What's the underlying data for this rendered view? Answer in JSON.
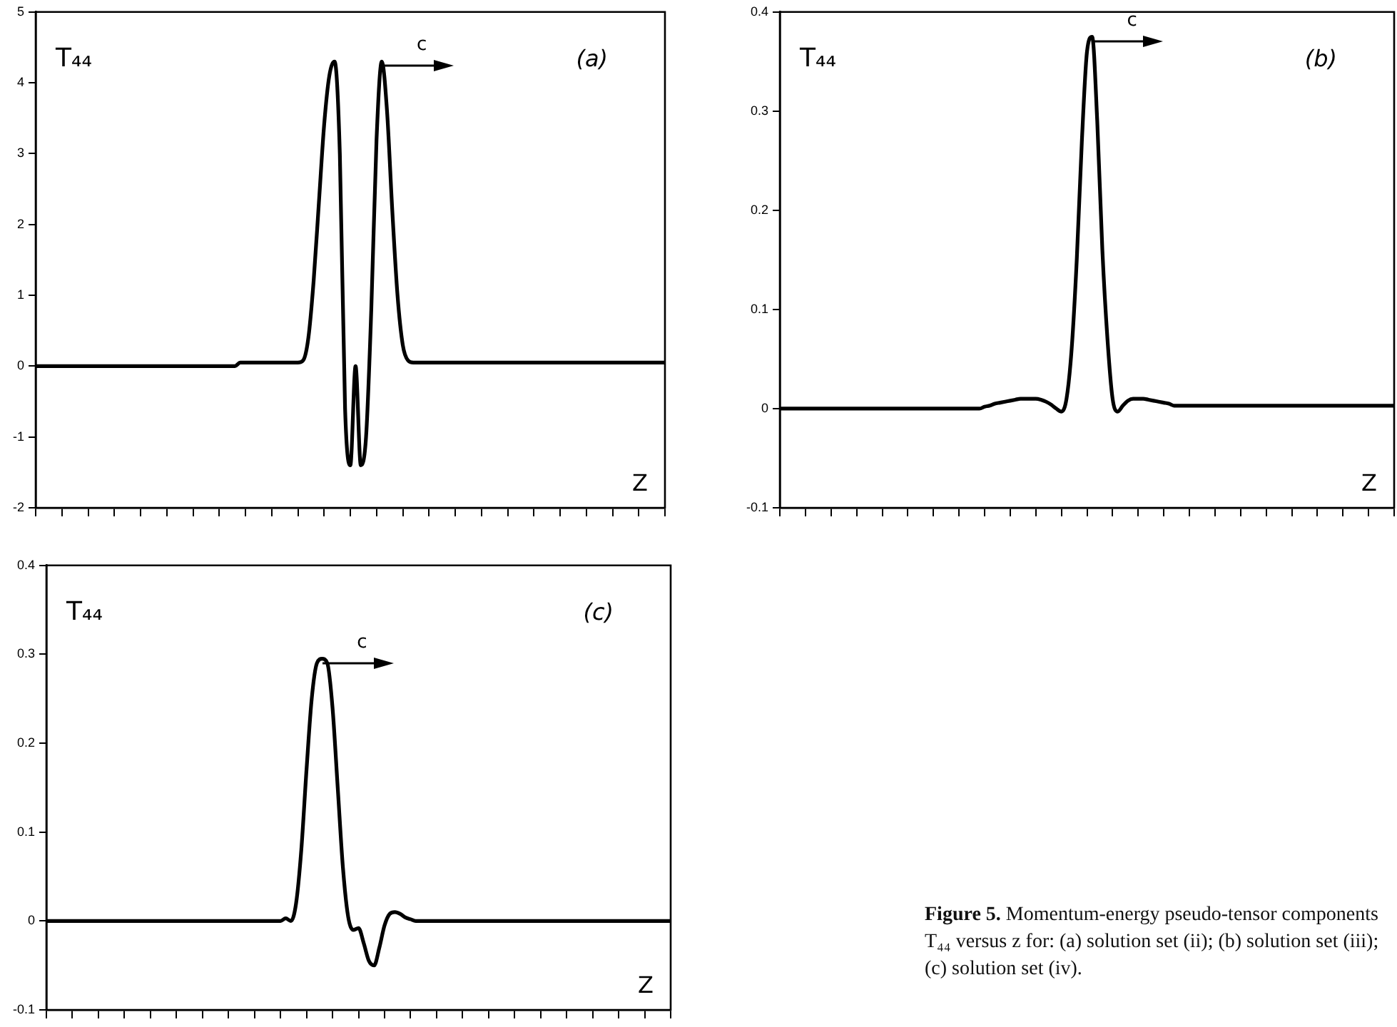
{
  "chart_data": [
    {
      "type": "line",
      "xlabel": "Z",
      "ylabel": "T₄₄",
      "annotations": [
        "(a)",
        "c"
      ],
      "grid": false,
      "legend": false,
      "tick_labels": "y",
      "ylim": [
        -2,
        5
      ],
      "yticks": [
        -2,
        -1,
        0,
        1,
        2,
        3,
        4,
        5
      ],
      "categories": [
        null,
        null,
        null,
        null,
        null,
        null,
        null,
        null,
        null,
        null,
        null,
        null,
        null,
        null,
        null,
        null,
        null,
        null,
        null,
        null,
        null,
        null,
        null,
        null,
        null,
        null,
        null,
        null,
        null,
        null,
        null,
        null,
        null,
        null,
        null,
        null,
        null,
        null,
        null,
        null,
        null,
        null,
        null,
        null,
        null,
        null,
        null,
        null,
        null,
        null,
        null,
        null,
        null,
        null,
        null,
        null,
        null,
        null,
        null,
        null,
        null,
        null,
        null,
        null,
        null,
        null,
        null,
        null,
        null,
        null,
        null,
        null,
        null,
        null,
        null,
        null,
        null,
        null,
        null,
        null,
        null,
        null,
        null,
        null,
        null,
        null,
        null,
        null,
        null,
        null,
        null,
        null,
        null,
        null,
        null,
        null,
        null,
        null,
        null,
        null,
        null,
        null,
        null,
        null,
        null,
        null,
        null,
        null,
        null,
        null,
        null,
        null,
        null,
        null,
        null,
        null,
        null,
        null,
        null,
        null,
        null
      ],
      "series": [
        {
          "color": "#000000",
          "values": [
            0,
            0,
            0,
            0,
            0,
            0,
            0,
            0,
            0,
            0,
            0,
            0,
            0,
            0,
            0,
            0,
            0,
            0,
            0,
            0,
            0,
            0,
            0,
            0,
            0,
            0,
            0,
            0,
            0,
            0,
            0,
            0,
            0,
            0,
            0,
            0,
            0,
            0,
            0,
            0.05,
            0.05,
            0.05,
            0.05,
            0.05,
            0.05,
            0.05,
            0.05,
            0.05,
            0.05,
            0.05,
            0.05,
            0.08,
            0.4,
            1.2,
            2.3,
            3.4,
            4.1,
            4.3,
            3.0,
            -0.6,
            -1.4,
            0,
            -1.4,
            -1.0,
            0.8,
            3.2,
            4.3,
            3.6,
            2.2,
            1.0,
            0.3,
            0.08,
            0.05,
            0.05,
            0.05,
            0.05,
            0.05,
            0.05,
            0.05,
            0.05,
            0.05,
            0.05,
            0.05,
            0.05,
            0.05,
            0.05,
            0.05,
            0.05,
            0.05,
            0.05,
            0.05,
            0.05,
            0.05,
            0.05,
            0.05,
            0.05,
            0.05,
            0.05,
            0.05,
            0.05,
            0.05,
            0.05,
            0.05,
            0.05,
            0.05,
            0.05,
            0.05,
            0.05,
            0.05,
            0.05,
            0.05,
            0.05,
            0.05,
            0.05,
            0.05,
            0.05,
            0.05,
            0.05,
            0.05,
            0.05,
            0.05
          ]
        }
      ]
    },
    {
      "type": "line",
      "xlabel": "Z",
      "ylabel": "T₄₄",
      "annotations": [
        "(b)",
        "c"
      ],
      "grid": false,
      "legend": false,
      "tick_labels": "y",
      "ylim": [
        -0.1,
        0.4
      ],
      "yticks": [
        -0.1,
        0,
        0.1,
        0.2,
        0.3,
        0.4
      ],
      "categories": [
        null,
        null,
        null,
        null,
        null,
        null,
        null,
        null,
        null,
        null,
        null,
        null,
        null,
        null,
        null,
        null,
        null,
        null,
        null,
        null,
        null,
        null,
        null,
        null,
        null,
        null,
        null,
        null,
        null,
        null,
        null,
        null,
        null,
        null,
        null,
        null,
        null,
        null,
        null,
        null,
        null,
        null,
        null,
        null,
        null,
        null,
        null,
        null,
        null,
        null,
        null,
        null,
        null,
        null,
        null,
        null,
        null,
        null,
        null,
        null,
        null,
        null,
        null,
        null,
        null,
        null,
        null,
        null,
        null,
        null,
        null,
        null,
        null,
        null,
        null,
        null,
        null,
        null,
        null,
        null,
        null,
        null,
        null,
        null,
        null,
        null,
        null,
        null,
        null,
        null,
        null,
        null,
        null,
        null,
        null,
        null,
        null,
        null,
        null,
        null,
        null,
        null,
        null,
        null,
        null,
        null,
        null,
        null,
        null,
        null,
        null,
        null,
        null,
        null,
        null,
        null,
        null,
        null,
        null,
        null,
        null
      ],
      "series": [
        {
          "color": "#000000",
          "values": [
            0,
            0,
            0,
            0,
            0,
            0,
            0,
            0,
            0,
            0,
            0,
            0,
            0,
            0,
            0,
            0,
            0,
            0,
            0,
            0,
            0,
            0,
            0,
            0,
            0,
            0,
            0,
            0,
            0,
            0,
            0,
            0,
            0,
            0,
            0,
            0,
            0,
            0,
            0,
            0,
            0.002,
            0.003,
            0.005,
            0.006,
            0.007,
            0.008,
            0.009,
            0.01,
            0.01,
            0.01,
            0.01,
            0.009,
            0.007,
            0.004,
            0,
            -0.003,
            0.01,
            0.06,
            0.15,
            0.27,
            0.36,
            0.375,
            0.29,
            0.16,
            0.07,
            0.01,
            -0.003,
            0.003,
            0.008,
            0.01,
            0.01,
            0.01,
            0.009,
            0.008,
            0.007,
            0.006,
            0.005,
            0.003,
            0.003,
            0.003,
            0.003,
            0.003,
            0.003,
            0.003,
            0.003,
            0.003,
            0.003,
            0.003,
            0.003,
            0.003,
            0.003,
            0.003,
            0.003,
            0.003,
            0.003,
            0.003,
            0.003,
            0.003,
            0.003,
            0.003,
            0.003,
            0.003,
            0.003,
            0.003,
            0.003,
            0.003,
            0.003,
            0.003,
            0.003,
            0.003,
            0.003,
            0.003,
            0.003,
            0.003,
            0.003,
            0.003,
            0.003,
            0.003,
            0.003,
            0.003,
            0.003
          ]
        }
      ]
    },
    {
      "type": "line",
      "xlabel": "Z",
      "ylabel": "T₄₄",
      "annotations": [
        "(c)",
        "c",
        "Figure 5. Momentum-energy pseudo-tensor components T₄₄ versus z for: (a) solution set (ii); (b) solution set (iii); (c) solution set (iv)."
      ],
      "grid": false,
      "legend": false,
      "tick_labels": "y",
      "ylim": [
        -0.1,
        0.4
      ],
      "yticks": [
        -0.1,
        0,
        0.1,
        0.2,
        0.3,
        0.4
      ],
      "categories": [
        null,
        null,
        null,
        null,
        null,
        null,
        null,
        null,
        null,
        null,
        null,
        null,
        null,
        null,
        null,
        null,
        null,
        null,
        null,
        null,
        null,
        null,
        null,
        null,
        null,
        null,
        null,
        null,
        null,
        null,
        null,
        null,
        null,
        null,
        null,
        null,
        null,
        null,
        null,
        null,
        null,
        null,
        null,
        null,
        null,
        null,
        null,
        null,
        null,
        null,
        null,
        null,
        null,
        null,
        null,
        null,
        null,
        null,
        null,
        null,
        null,
        null,
        null,
        null,
        null,
        null,
        null,
        null,
        null,
        null,
        null,
        null,
        null,
        null,
        null,
        null,
        null,
        null,
        null,
        null,
        null,
        null,
        null,
        null,
        null,
        null,
        null,
        null,
        null,
        null,
        null,
        null,
        null,
        null,
        null,
        null,
        null,
        null,
        null,
        null,
        null,
        null,
        null,
        null,
        null,
        null,
        null,
        null,
        null,
        null,
        null,
        null,
        null,
        null,
        null,
        null,
        null,
        null,
        null,
        null,
        null
      ],
      "series": [
        {
          "color": "#000000",
          "values": [
            0,
            0,
            0,
            0,
            0,
            0,
            0,
            0,
            0,
            0,
            0,
            0,
            0,
            0,
            0,
            0,
            0,
            0,
            0,
            0,
            0,
            0,
            0,
            0,
            0,
            0,
            0,
            0,
            0,
            0,
            0,
            0,
            0,
            0,
            0,
            0,
            0,
            0,
            0,
            0,
            0,
            0,
            0,
            0,
            0,
            0,
            0.003,
            0,
            0.02,
            0.08,
            0.17,
            0.25,
            0.29,
            0.295,
            0.29,
            0.24,
            0.15,
            0.06,
            0.005,
            -0.01,
            -0.008,
            -0.025,
            -0.045,
            -0.05,
            -0.03,
            -0.005,
            0.008,
            0.01,
            0.008,
            0.004,
            0.002,
            0,
            0,
            0,
            0,
            0,
            0,
            0,
            0,
            0,
            0,
            0,
            0,
            0,
            0,
            0,
            0,
            0,
            0,
            0,
            0,
            0,
            0,
            0,
            0,
            0,
            0,
            0,
            0,
            0,
            0,
            0,
            0,
            0,
            0,
            0,
            0,
            0,
            0,
            0,
            0,
            0,
            0,
            0,
            0,
            0,
            0,
            0,
            0,
            0,
            0
          ]
        }
      ]
    }
  ]
}
